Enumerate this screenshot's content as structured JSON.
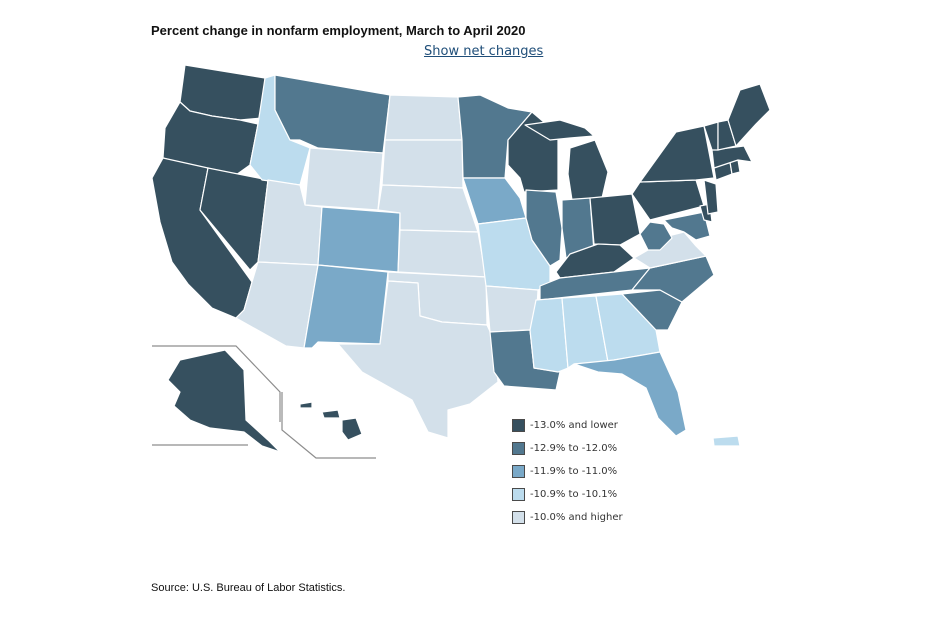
{
  "title": "Percent change in nonfarm employment, March to April 2020",
  "toggle_link": "Show net changes",
  "source": "Source: U.S. Bureau of Labor Statistics.",
  "colors": {
    "c1": "#36505f",
    "c2": "#52788f",
    "c3": "#7aa9c8",
    "c4": "#bcdcee",
    "c5": "#d3e0ea",
    "border": "#ffffff"
  },
  "legend": [
    {
      "label": "-13.0% and lower",
      "color": "#36505f"
    },
    {
      "label": "-12.9% to -12.0%",
      "color": "#52788f"
    },
    {
      "label": "-11.9% to -11.0%",
      "color": "#7aa9c8"
    },
    {
      "label": "-10.9% to -10.1%",
      "color": "#bcdcee"
    },
    {
      "label": "-10.0% and higher",
      "color": "#d3e0ea"
    }
  ]
}
